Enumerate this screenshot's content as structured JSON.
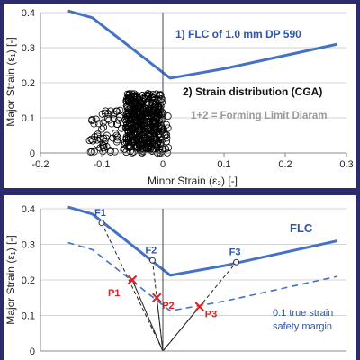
{
  "colors": {
    "frame": "#2a2c6e",
    "panel_bg": "#ffffff",
    "flc_blue": "#4472c4",
    "annotation_blue": "#2f55a8",
    "gray_text": "#9a9a9a",
    "cross_red": "#e02020",
    "dash_black": "#222222",
    "grid": "#d4d4d4",
    "axis_text": "#222222"
  },
  "chart_data": [
    {
      "type": "line",
      "ylabel": "Major Strain (ε₁) [-]",
      "xlabel": "Minor Strain (ε₂) [-]",
      "xlim": [
        -0.2,
        0.3
      ],
      "ylim": [
        0,
        0.4
      ],
      "x_ticks": [
        "-0.2",
        "-0.1",
        "0",
        "0.1",
        "0.2",
        "0.3"
      ],
      "y_ticks": [
        "0",
        "0.1",
        "0.2",
        "0.3",
        "0.4"
      ],
      "grid": "horizontal",
      "annotations": [
        "1) FLC of 1.0 mm DP 590",
        "2) Strain distribution (CGA)",
        "1+2 = Forming Limit Diaram"
      ],
      "series": [
        {
          "label": "1) FLC of 1.0 mm DP 590",
          "style": "solid",
          "color": "#4472c4",
          "x": [
            -0.155,
            -0.115,
            0.012,
            0.1,
            0.285
          ],
          "y": [
            0.405,
            0.385,
            0.213,
            0.24,
            0.31
          ]
        },
        {
          "label": "2) Strain distribution (CGA)",
          "style": "scatter-open-circles",
          "color": "#000000",
          "cluster": {
            "x_range": [
              -0.12,
              0.01
            ],
            "y_range": [
              0.0,
              0.18
            ],
            "dense_core_x": [
              -0.06,
              0.0
            ],
            "dense_core_y": [
              0.0,
              0.17
            ]
          }
        }
      ]
    },
    {
      "type": "line",
      "ylabel": "Major Strain (ε₁) [-]",
      "xlabel": "",
      "xlim": [
        -0.2,
        0.3
      ],
      "ylim": [
        0,
        0.4
      ],
      "x_ticks": [],
      "y_ticks": [
        "0",
        "0.1",
        "0.2",
        "0.3",
        "0.4"
      ],
      "grid": "horizontal",
      "series": [
        {
          "label": "FLC",
          "style": "solid",
          "color": "#4472c4",
          "x": [
            -0.155,
            -0.115,
            0.012,
            0.1,
            0.285
          ],
          "y": [
            0.405,
            0.385,
            0.213,
            0.24,
            0.31
          ]
        },
        {
          "label": "0.1 true strain safety margin",
          "style": "dashed",
          "color": "#4472c4",
          "x": [
            -0.155,
            -0.115,
            0.012,
            0.1,
            0.285
          ],
          "y": [
            0.305,
            0.285,
            0.113,
            0.14,
            0.21
          ]
        }
      ],
      "points": [
        {
          "label": "F1",
          "kind": "circle",
          "x": -0.1,
          "y": 0.36
        },
        {
          "label": "F2",
          "kind": "circle",
          "x": -0.017,
          "y": 0.255
        },
        {
          "label": "F3",
          "kind": "circle",
          "x": 0.12,
          "y": 0.25
        },
        {
          "label": "P1",
          "kind": "cross",
          "x": -0.05,
          "y": 0.2
        },
        {
          "label": "P2",
          "kind": "cross",
          "x": -0.01,
          "y": 0.15
        },
        {
          "label": "P3",
          "kind": "cross",
          "x": 0.06,
          "y": 0.125
        }
      ],
      "strain_paths": [
        {
          "from": [
            0,
            0
          ],
          "to": [
            -0.1,
            0.36
          ]
        },
        {
          "from": [
            0,
            0
          ],
          "to": [
            -0.017,
            0.255
          ]
        },
        {
          "from": [
            0,
            0
          ],
          "to": [
            0.12,
            0.25
          ]
        }
      ],
      "text_labels": {
        "flc": "FLC",
        "margin_line1": "0.1 true strain",
        "margin_line2": "safety margin"
      }
    }
  ]
}
